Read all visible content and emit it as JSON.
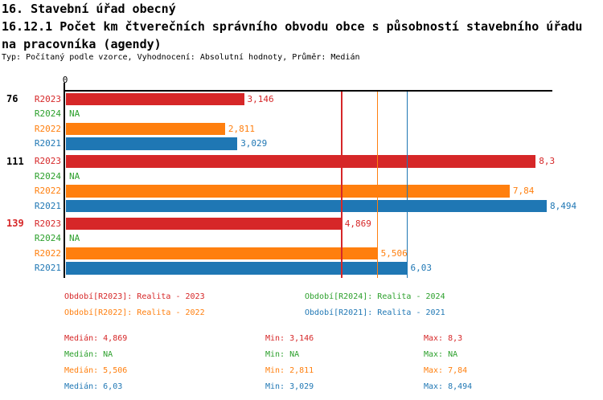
{
  "header": {
    "title_line1": "16. Stavební úřad obecný",
    "title_line2": "16.12.1 Počet km čtverečních správního obvodu obce s působností stavebního úřadu",
    "title_line3": "na pracovníka (agendy)",
    "meta_line": "Typ: Počítaný podle vzorce, Vyhodnocení: Absolutní hodnoty, Průměr: Medián"
  },
  "colors": {
    "R2023": "#d62728",
    "R2024": "#2ca02c",
    "R2022": "#ff7f0e",
    "R2021": "#1f77b4",
    "highlight_group_label": "#d62728",
    "axis": "#000000",
    "text": "#000000"
  },
  "chart_data": {
    "type": "bar",
    "orientation": "horizontal",
    "xlim": [
      0,
      8.6
    ],
    "axis_zero_label": "0",
    "grid": "off",
    "series_order": [
      "R2023",
      "R2024",
      "R2022",
      "R2021"
    ],
    "groups": [
      {
        "label": "76",
        "highlighted": false,
        "bars": [
          {
            "series": "R2023",
            "display": "3,146",
            "value": 3.146
          },
          {
            "series": "R2024",
            "display": "NA",
            "value": null
          },
          {
            "series": "R2022",
            "display": "2,811",
            "value": 2.811
          },
          {
            "series": "R2021",
            "display": "3,029",
            "value": 3.029
          }
        ]
      },
      {
        "label": "111",
        "highlighted": false,
        "bars": [
          {
            "series": "R2023",
            "display": "8,3",
            "value": 8.3
          },
          {
            "series": "R2024",
            "display": "NA",
            "value": null
          },
          {
            "series": "R2022",
            "display": "7,84",
            "value": 7.84
          },
          {
            "series": "R2021",
            "display": "8,494",
            "value": 8.494
          }
        ]
      },
      {
        "label": "139",
        "highlighted": true,
        "bars": [
          {
            "series": "R2023",
            "display": "4,869",
            "value": 4.869
          },
          {
            "series": "R2024",
            "display": "NA",
            "value": null
          },
          {
            "series": "R2022",
            "display": "5,506",
            "value": 5.506
          },
          {
            "series": "R2021",
            "display": "6,03",
            "value": 6.03
          }
        ]
      }
    ],
    "median_lines": [
      {
        "series": "R2023",
        "value": 4.869
      },
      {
        "series": "R2022",
        "value": 5.506
      },
      {
        "series": "R2021",
        "value": 6.03
      }
    ]
  },
  "legend": [
    {
      "series": "R2023",
      "label": "Období[R2023]: Realita - 2023"
    },
    {
      "series": "R2024",
      "label": "Období[R2024]: Realita - 2024"
    },
    {
      "series": "R2022",
      "label": "Období[R2022]: Realita - 2022"
    },
    {
      "series": "R2021",
      "label": "Období[R2021]: Realita - 2021"
    }
  ],
  "stats": [
    {
      "series": "R2023",
      "median": "Medián: 4,869",
      "min": "Min: 3,146",
      "max": "Max: 8,3"
    },
    {
      "series": "R2024",
      "median": "Medián: NA",
      "min": "Min: NA",
      "max": "Max: NA"
    },
    {
      "series": "R2022",
      "median": "Medián: 5,506",
      "min": "Min: 2,811",
      "max": "Max: 7,84"
    },
    {
      "series": "R2021",
      "median": "Medián: 6,03",
      "min": "Min: 3,029",
      "max": "Max: 8,494"
    }
  ]
}
